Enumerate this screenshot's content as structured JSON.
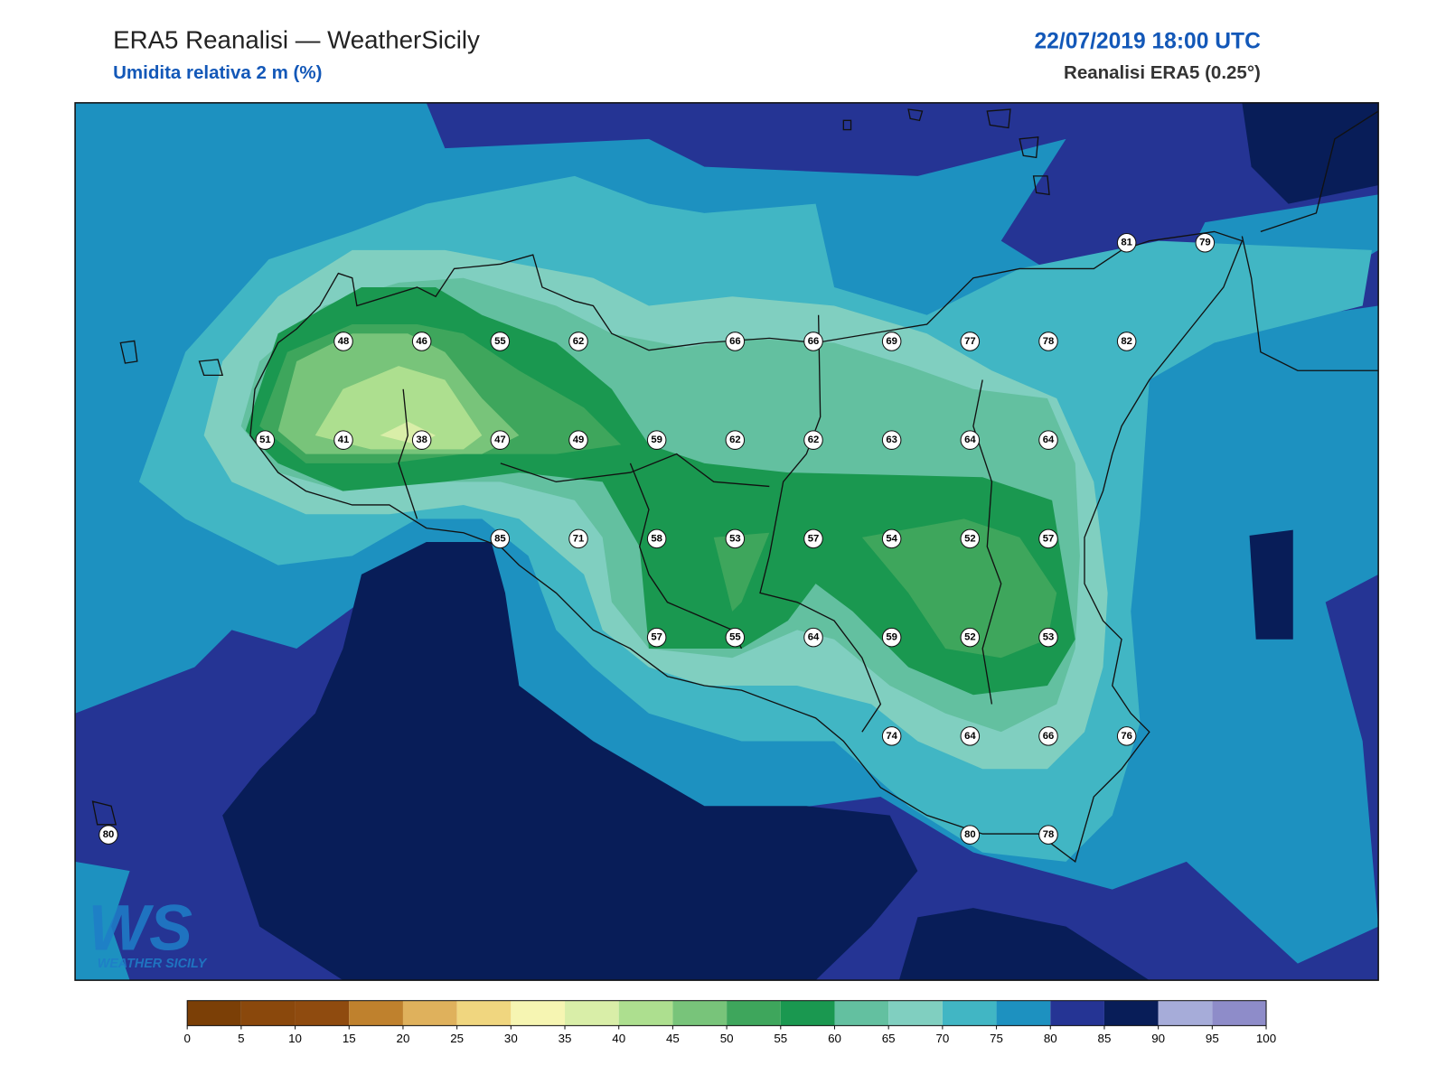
{
  "header": {
    "title": "ERA5 Reanalisi — WeatherSicily",
    "subtitle": "Umidita relativa 2 m (%)",
    "date": "22/07/2019 18:00 UTC",
    "source": "Reanalisi ERA5 (0.25°)"
  },
  "stations": [
    [
      null,
      null,
      null,
      null,
      null,
      null,
      null,
      null,
      null,
      null,
      null,
      null,
      null,
      81,
      79
    ],
    [
      null,
      null,
      null,
      48,
      46,
      55,
      62,
      null,
      66,
      66,
      69,
      77,
      78,
      82,
      null
    ],
    [
      null,
      null,
      51,
      41,
      38,
      47,
      49,
      59,
      62,
      62,
      63,
      64,
      64,
      null,
      null
    ],
    [
      null,
      null,
      null,
      null,
      null,
      85,
      71,
      58,
      53,
      57,
      54,
      52,
      57,
      null,
      null
    ],
    [
      null,
      null,
      null,
      null,
      null,
      null,
      null,
      57,
      55,
      64,
      59,
      52,
      53,
      null,
      null
    ],
    [
      null,
      null,
      null,
      null,
      null,
      null,
      null,
      null,
      null,
      null,
      74,
      64,
      66,
      76,
      null
    ],
    [
      80,
      null,
      null,
      null,
      null,
      null,
      null,
      null,
      null,
      null,
      null,
      80,
      78,
      null,
      null
    ]
  ],
  "colorbar": {
    "ticks": [
      0,
      5,
      10,
      15,
      20,
      25,
      30,
      35,
      40,
      45,
      50,
      55,
      60,
      65,
      70,
      75,
      80,
      85,
      90,
      95,
      100
    ],
    "colors": [
      "#7b3f06",
      "#8a480c",
      "#8f4b0f",
      "#bf812d",
      "#dfb15c",
      "#f0d67f",
      "#f6f5b2",
      "#d9eea8",
      "#addf8f",
      "#78c47a",
      "#3ea65c",
      "#1a9850",
      "#63c0a0",
      "#80cfc0",
      "#41b6c4",
      "#1d91c0",
      "#253494",
      "#081d58",
      "#a6acd9",
      "#8e8cc9"
    ]
  },
  "logo": {
    "mark": "WS",
    "caption": "WEATHER SICILY"
  }
}
